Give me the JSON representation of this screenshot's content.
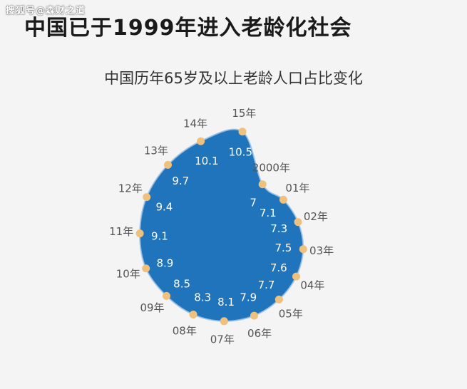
{
  "watermark": "搜狐号@森财之道",
  "headline": "中国已于1999年进入老龄化社会",
  "colors": {
    "fill": "#1f74bb",
    "marker": "#f0c07d",
    "highlight": "#9ec3e6"
  },
  "chart_data": {
    "type": "radar",
    "title": "中国历年65岁及以上老龄人口占比变化",
    "categories": [
      "2000年",
      "01年",
      "02年",
      "03年",
      "04年",
      "05年",
      "06年",
      "07年",
      "08年",
      "09年",
      "10年",
      "11年",
      "12年",
      "13年",
      "14年",
      "15年"
    ],
    "values": [
      7,
      7.1,
      7.3,
      7.5,
      7.6,
      7.7,
      7.9,
      8.1,
      8.3,
      8.5,
      8.9,
      9.1,
      9.4,
      9.7,
      10.1,
      10.5
    ]
  }
}
